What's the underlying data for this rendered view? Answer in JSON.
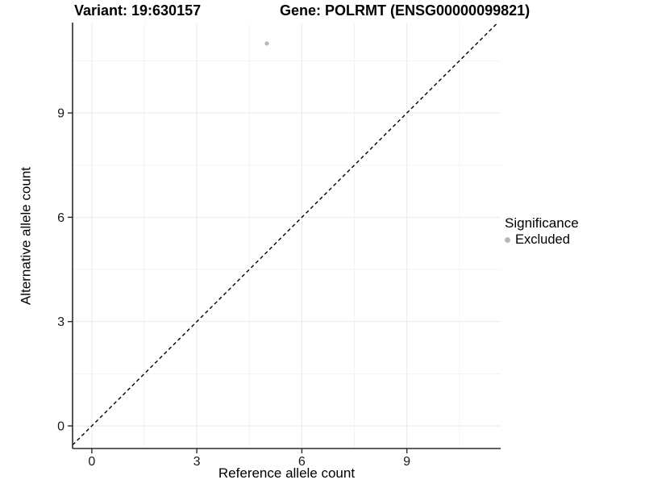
{
  "titles": {
    "variant": "Variant: 19:630157",
    "gene": "Gene: POLRMT (ENSG00000099821)"
  },
  "chart_data": {
    "type": "scatter",
    "title_left": "Variant: 19:630157",
    "title_right": "Gene: POLRMT (ENSG00000099821)",
    "xlabel": "Reference allele count",
    "ylabel": "Alternative allele count",
    "xlim": [
      -0.55,
      11.68
    ],
    "ylim": [
      -0.65,
      11.6
    ],
    "x_ticks": [
      0,
      3,
      6,
      9
    ],
    "y_ticks": [
      0,
      3,
      6,
      9
    ],
    "x_minor_ticks": [
      1.5,
      4.5,
      7.5,
      10.5
    ],
    "y_minor_ticks": [
      1.5,
      4.5,
      7.5,
      10.5
    ],
    "grid": true,
    "legend_position": "right",
    "points": [
      {
        "x": 5,
        "y": 11,
        "significance": "Excluded"
      }
    ],
    "reference_line": {
      "slope": 1,
      "intercept": 0,
      "style": "dashed"
    },
    "colors": {
      "excluded_point": "#b8b8b8",
      "grid_major": "#e9e9e9",
      "grid_minor": "#f3f3f3",
      "axis_line": "#2b2b2b",
      "tick_label": "#1a1a1a",
      "reference_line": "#000000"
    }
  },
  "legend": {
    "title": "Significance",
    "items": [
      {
        "label": "Excluded",
        "color": "#b8b8b8"
      }
    ]
  }
}
